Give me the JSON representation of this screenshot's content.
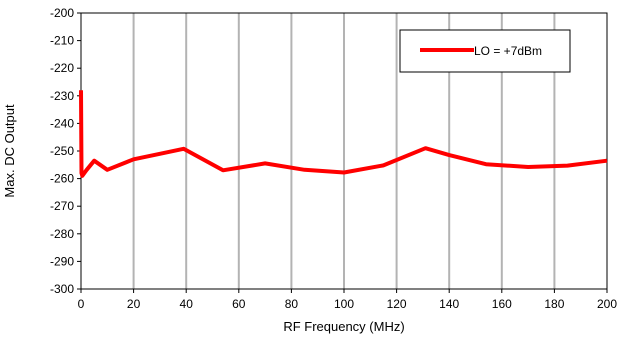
{
  "chart_data": {
    "type": "line",
    "title": "",
    "xlabel": "RF Frequency (MHz)",
    "ylabel": "Max. DC Output",
    "xlim": [
      0,
      200
    ],
    "ylim": [
      -300,
      -200
    ],
    "x_ticks": [
      0,
      20,
      40,
      60,
      80,
      100,
      120,
      140,
      160,
      180,
      200
    ],
    "y_ticks": [
      -200,
      -210,
      -220,
      -230,
      -240,
      -250,
      -260,
      -270,
      -280,
      -290,
      -300
    ],
    "grid": "vertical",
    "legend_position": "top-right",
    "series": [
      {
        "name": "LO = +7dBm",
        "color": "#ff0000",
        "x": [
          0,
          0.2,
          0.5,
          2,
          5,
          10,
          20,
          30,
          39,
          54,
          70,
          85,
          100,
          115,
          131,
          140,
          154,
          170,
          185,
          200
        ],
        "y": [
          -228,
          -258,
          -259,
          -257,
          -253.5,
          -256.8,
          -253,
          -251,
          -249.2,
          -257,
          -254.5,
          -256.8,
          -257.8,
          -255.2,
          -249,
          -251.5,
          -254.8,
          -255.8,
          -255.3,
          -253.5
        ]
      }
    ]
  }
}
